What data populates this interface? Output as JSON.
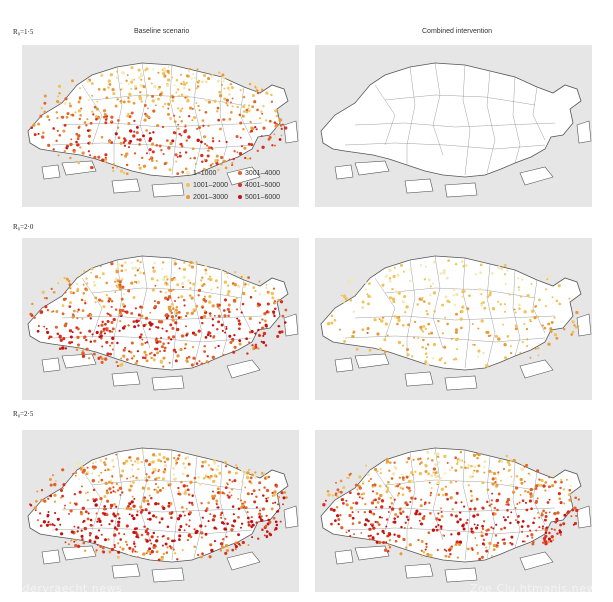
{
  "columns": [
    "Baseline scenario",
    "Combined intervention"
  ],
  "rows": [
    {
      "label": "R₀=1·5",
      "baseline_density": 0.75,
      "combined_density": 0.0
    },
    {
      "label": "R₀=2·0",
      "baseline_density": 0.85,
      "combined_density": 0.4
    },
    {
      "label": "R₀=2·5",
      "baseline_density": 0.95,
      "combined_density": 0.85
    }
  ],
  "legend": {
    "items": [
      {
        "label": "1–1000",
        "color": "#f3e6b0"
      },
      {
        "label": "1001–2000",
        "color": "#f0c25a"
      },
      {
        "label": "2001–3000",
        "color": "#e89a3a"
      },
      {
        "label": "3001–4000",
        "color": "#e0602a"
      },
      {
        "label": "4001–5000",
        "color": "#d83020"
      },
      {
        "label": "5001–6000",
        "color": "#c01010"
      }
    ]
  },
  "watermarks": {
    "left": "Ondervraecht news",
    "right": "Zoe Clu.htmanis.news"
  }
}
